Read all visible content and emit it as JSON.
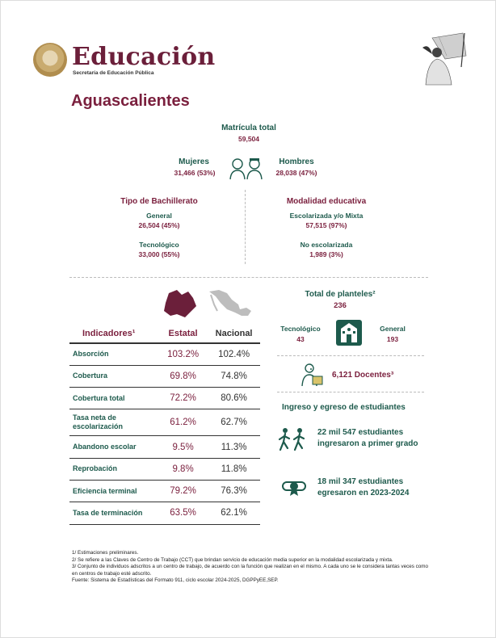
{
  "header": {
    "brand": "Educación",
    "brand_sub": "Secretaría de Educación Pública"
  },
  "title": "Aguascalientes",
  "matricula": {
    "label": "Matrícula total",
    "value": "59,504"
  },
  "mujeres": {
    "label": "Mujeres",
    "value": "31,466 (53%)"
  },
  "hombres": {
    "label": "Hombres",
    "value": "28,038 (47%)"
  },
  "tipo": {
    "label": "Tipo de Bachillerato",
    "general_label": "General",
    "general_value": "26,504 (45%)",
    "tecnologico_label": "Tecnológico",
    "tecnologico_value": "33,000 (55%)"
  },
  "modalidad": {
    "label": "Modalidad educativa",
    "escolarizada_label": "Escolarizada y/o Mixta",
    "escolarizada_value": "57,515 (97%)",
    "no_escolarizada_label": "No escolarizada",
    "no_escolarizada_value": "1,989 (3%)"
  },
  "table": {
    "headers": [
      "Indicadores¹",
      "Estatal",
      "Nacional"
    ],
    "rows": [
      {
        "name": "Absorción",
        "estatal": "103.2%",
        "nacional": "102.4%"
      },
      {
        "name": "Cobertura",
        "estatal": "69.8%",
        "nacional": "74.8%"
      },
      {
        "name": "Cobertura total",
        "estatal": "72.2%",
        "nacional": "80.6%"
      },
      {
        "name": "Tasa neta de escolarización",
        "estatal": "61.2%",
        "nacional": "62.7%"
      },
      {
        "name": "Abandono escolar",
        "estatal": "9.5%",
        "nacional": "11.3%"
      },
      {
        "name": "Reprobación",
        "estatal": "9.8%",
        "nacional": "11.8%"
      },
      {
        "name": "Eficiencia terminal",
        "estatal": "79.2%",
        "nacional": "76.3%"
      },
      {
        "name": "Tasa de terminación",
        "estatal": "63.5%",
        "nacional": "62.1%"
      }
    ]
  },
  "planteles": {
    "label": "Total de planteles²",
    "value": "236",
    "tecnologico_label": "Tecnológico",
    "tecnologico_value": "43",
    "general_label": "General",
    "general_value": "193"
  },
  "docentes": "6,121 Docentes³",
  "ingreso": {
    "title": "Ingreso y egreso de estudiantes",
    "ingresaron_1": "22 mil 547 estudiantes",
    "ingresaron_2": "ingresaron a primer grado",
    "egresaron_1": "18 mil 347 estudiantes",
    "egresaron_2": "egresaron en 2023-2024"
  },
  "notes": [
    "1/ Estimaciones preliminares.",
    "2/ Se refiere a las Claves de Centro de Trabajo (CCT) que brindan servicio de educación media superior en la modalidad escolarizada y mixta.",
    "3/ Conjunto de individuos adscritos a un centro de trabajo, de acuerdo con la función que realizan en el mismo. A cada uno se le considera tantas veces como en centros de trabajo esté adscrito.",
    "Fuente: Sistema de Estadísticas del Formato 911, ciclo escolar 2024-2025, DGPPyEE,SEP."
  ],
  "colors": {
    "maroon": "#7a1f3d",
    "green": "#1d5a4c"
  }
}
